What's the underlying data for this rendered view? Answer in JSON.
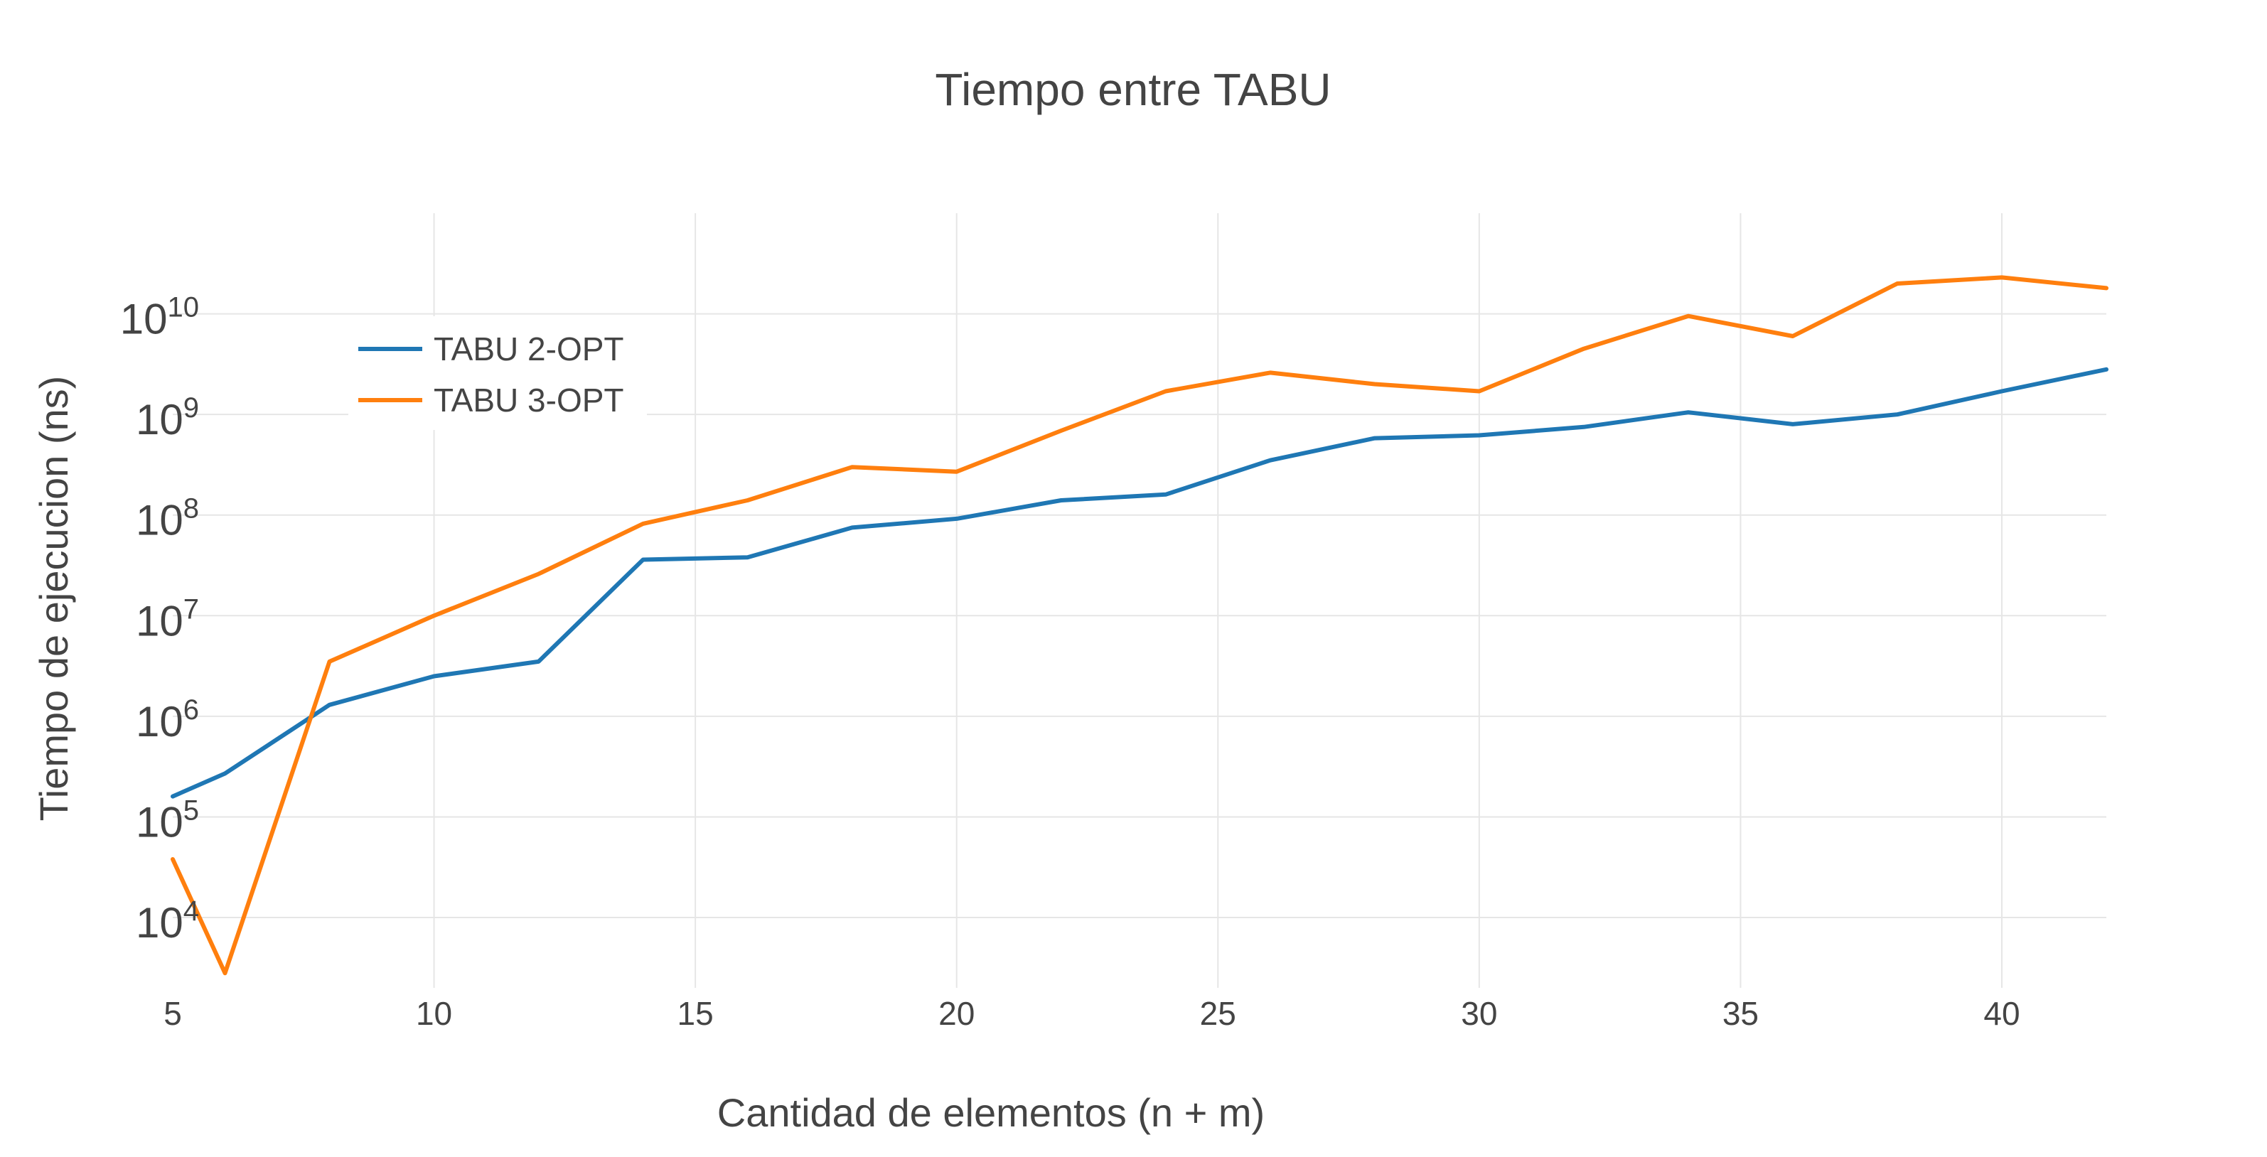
{
  "chart_data": {
    "type": "line",
    "title": "Tiempo entre TABU",
    "xlabel": "Cantidad de elementos (n + m)",
    "ylabel": "Tiempo de ejecucion (ns)",
    "y_scale": "log",
    "xlim": [
      5,
      42
    ],
    "ylim": [
      2000,
      100000000000
    ],
    "grid": true,
    "legend_position": "top-left",
    "x_ticks": [
      "5",
      "10",
      "15",
      "20",
      "25",
      "30",
      "35",
      "40"
    ],
    "y_ticks": [
      {
        "base": "10",
        "exp": "4"
      },
      {
        "base": "10",
        "exp": "5"
      },
      {
        "base": "10",
        "exp": "6"
      },
      {
        "base": "10",
        "exp": "7"
      },
      {
        "base": "10",
        "exp": "8"
      },
      {
        "base": "10",
        "exp": "9"
      },
      {
        "base": "10",
        "exp": "10"
      }
    ],
    "x": [
      5,
      6,
      8,
      10,
      12,
      14,
      16,
      18,
      20,
      22,
      24,
      26,
      28,
      30,
      32,
      34,
      36,
      38,
      40,
      42
    ],
    "series": [
      {
        "name": "TABU 2-OPT",
        "color": "#1f77b4",
        "values": [
          160000,
          270000,
          1300000,
          2500000,
          3500000,
          36000000,
          38000000,
          75000000,
          92000000,
          140000000,
          160000000,
          350000000,
          580000000,
          620000000,
          750000000,
          1050000000,
          800000000,
          1000000000,
          1700000000,
          2800000000
        ]
      },
      {
        "name": "TABU 3-OPT",
        "color": "#ff7f0e",
        "values": [
          38000,
          2800,
          3500000,
          10000000,
          26000000,
          82000000,
          140000000,
          300000000,
          270000000,
          690000000,
          1700000000,
          2600000000,
          2000000000,
          1700000000,
          4500000000,
          9500000000,
          6000000000,
          20000000000,
          23000000000,
          18000000000
        ]
      }
    ]
  }
}
